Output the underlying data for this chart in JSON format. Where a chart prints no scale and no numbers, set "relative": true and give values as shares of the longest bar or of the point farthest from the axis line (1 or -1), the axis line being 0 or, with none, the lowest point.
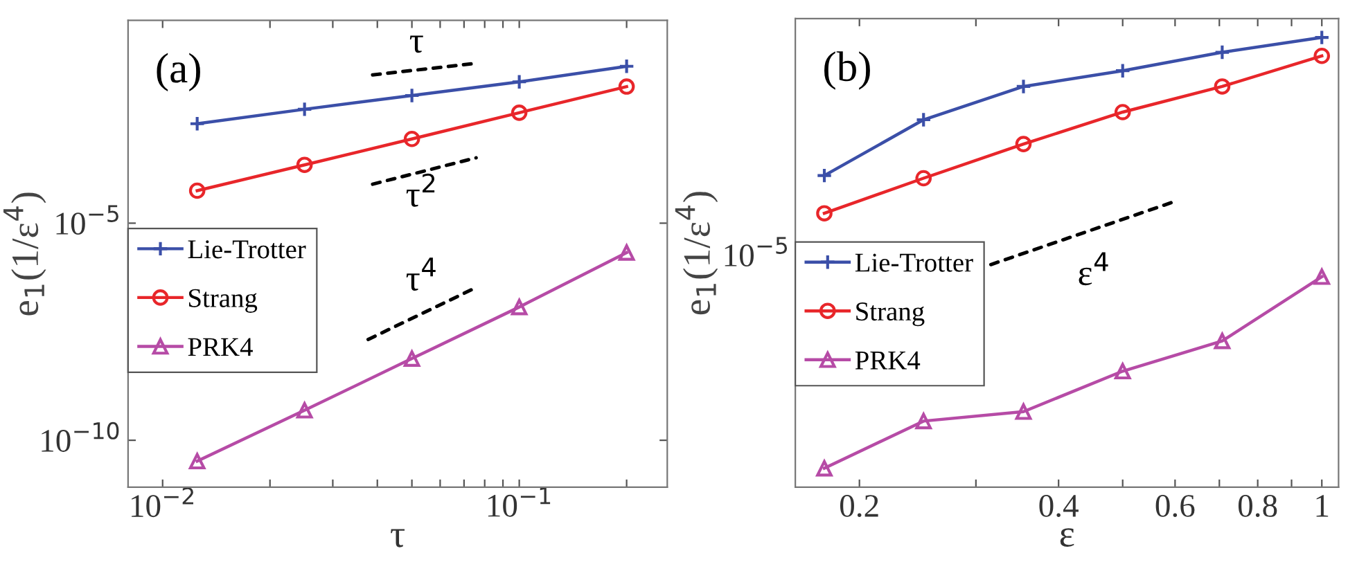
{
  "chart_data": [
    {
      "type": "line",
      "xlabel": "τ",
      "ylabel": "e$_{1}$(1/ε$^{4}$)",
      "log": "xy",
      "legend": "center left",
      "grid": false,
      "xlim": [
        0.008,
        0.26
      ],
      "ylim": [
        8.3e-12,
        0.47
      ],
      "xticks": [
        {
          "value": 0.01,
          "label": "10$^{−2}$"
        },
        {
          "value": 0.02,
          "label": null
        },
        {
          "value": 0.03,
          "label": null
        },
        {
          "value": 0.04,
          "label": null
        },
        {
          "value": 0.05,
          "label": null
        },
        {
          "value": 0.06,
          "label": null
        },
        {
          "value": 0.07,
          "label": null
        },
        {
          "value": 0.08,
          "label": null
        },
        {
          "value": 0.09,
          "label": null
        },
        {
          "value": 0.1,
          "label": "10$^{−1}$"
        },
        {
          "value": 0.2,
          "label": null
        }
      ],
      "yticks": [
        {
          "value": 1e-10,
          "label": "10$^{−10}$"
        },
        {
          "value": 1e-05,
          "label": "10$^{−5}$"
        }
      ],
      "annotations": [
        "(a)",
        "τ",
        "τ$^{2}$",
        "τ$^{4}$"
      ],
      "series": [
        {
          "name": "Lie-Trotter",
          "color": "#3b4fa8",
          "marker": "cross",
          "x": [
            0.0125,
            0.025,
            0.05,
            0.1,
            0.2
          ],
          "values": [
            0.00195,
            0.0042,
            0.0087,
            0.018,
            0.041
          ]
        },
        {
          "name": "Strang",
          "color": "#e8262a",
          "marker": "circle",
          "x": [
            0.0125,
            0.025,
            0.05,
            0.1,
            0.2
          ],
          "values": [
            5.6e-05,
            0.00022,
            0.00087,
            0.0035,
            0.014
          ]
        },
        {
          "name": "PRK4",
          "color": "#b64ba6",
          "marker": "triangle",
          "x": [
            0.0125,
            0.025,
            0.05,
            0.1,
            0.2
          ],
          "values": [
            3.3e-11,
            4.9e-10,
            7.6e-09,
            1.17e-07,
            2.1e-06
          ]
        },
        {
          "color": "#000000",
          "marker": "none",
          "line_style": "dashed",
          "x": [
            0.0388,
            0.0757
          ],
          "values": [
            0.026,
            0.048
          ]
        },
        {
          "color": "#000000",
          "marker": "none",
          "line_style": "dashed",
          "x": [
            0.0388,
            0.0757
          ],
          "values": [
            7.9e-05,
            0.00032
          ]
        },
        {
          "color": "#000000",
          "marker": "none",
          "line_style": "dashed",
          "x": [
            0.0377,
            0.0757
          ],
          "values": [
            2.1e-08,
            3.3e-07
          ]
        }
      ]
    },
    {
      "type": "line",
      "xlabel": "ε",
      "ylabel": "e$_{1}$(1/ε$^{4}$)",
      "log": "x",
      "relative": true,
      "legend": "center left",
      "grid": false,
      "xlim": [
        0.16,
        1.06
      ],
      "xticks": [
        {
          "value": 0.2,
          "label": "0.2"
        },
        {
          "value": 0.3,
          "label": null
        },
        {
          "value": 0.4,
          "label": "0.4"
        },
        {
          "value": 0.5,
          "label": null
        },
        {
          "value": 0.6,
          "label": "0.6"
        },
        {
          "value": 0.7,
          "label": null
        },
        {
          "value": 0.8,
          "label": "0.8"
        },
        {
          "value": 0.9,
          "label": null
        },
        {
          "value": 1,
          "label": "1"
        }
      ],
      "annotations": [
        "(b)",
        "ε$^{4}$",
        "10$^{−5}$"
      ],
      "series": [
        {
          "name": "Lie-Trotter",
          "color": "#3b4fa8",
          "marker": "cross",
          "x": [
            0.177,
            0.25,
            0.354,
            0.5,
            0.707,
            1
          ],
          "values": [
            0.693,
            0.817,
            0.891,
            0.926,
            0.967,
            1
          ]
        },
        {
          "name": "Strang",
          "color": "#e8262a",
          "marker": "circle",
          "x": [
            0.177,
            0.25,
            0.354,
            0.5,
            0.707,
            1
          ],
          "values": [
            0.609,
            0.687,
            0.763,
            0.834,
            0.891,
            0.959
          ]
        },
        {
          "name": "PRK4",
          "color": "#b64ba6",
          "marker": "triangle",
          "x": [
            0.177,
            0.25,
            0.354,
            0.5,
            0.707,
            1
          ],
          "values": [
            0.042,
            0.147,
            0.168,
            0.258,
            0.325,
            0.468
          ]
        },
        {
          "color": "#000000",
          "marker": "none",
          "line_style": "dashed",
          "x": [
            0.316,
            0.604
          ],
          "values": [
            0.495,
            0.637
          ]
        }
      ]
    }
  ]
}
